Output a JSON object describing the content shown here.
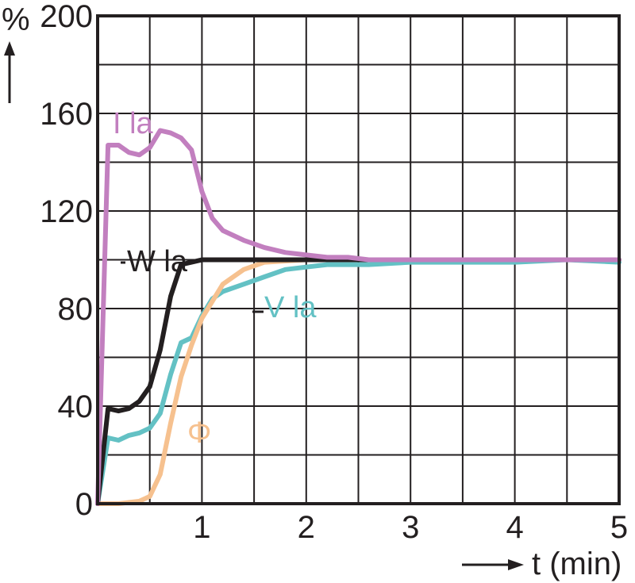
{
  "chart_data": {
    "type": "line",
    "xlabel": "t (min)",
    "ylabel": "%",
    "xlim": [
      0,
      5
    ],
    "ylim": [
      0,
      200
    ],
    "xticks": [
      "1",
      "2",
      "3",
      "4",
      "5"
    ],
    "yticks": [
      "0",
      "40",
      "80",
      "120",
      "160",
      "200"
    ],
    "grid": true,
    "series": [
      {
        "name": "I la",
        "color": "#c27fbf",
        "x": [
          0,
          0.1,
          0.2,
          0.3,
          0.4,
          0.5,
          0.6,
          0.7,
          0.8,
          0.9,
          1.0,
          1.1,
          1.2,
          1.4,
          1.6,
          1.8,
          2.0,
          2.2,
          2.4,
          2.6,
          3.0,
          3.5,
          4.0,
          5.0
        ],
        "y": [
          0,
          147,
          147,
          144,
          143,
          146,
          153,
          152,
          150,
          145,
          128,
          117,
          112,
          108,
          105,
          103,
          102,
          101,
          101,
          100,
          100,
          100,
          100,
          100
        ]
      },
      {
        "name": "W la",
        "color": "#231f20",
        "x": [
          0,
          0.1,
          0.2,
          0.3,
          0.4,
          0.5,
          0.6,
          0.7,
          0.8,
          0.9,
          1.0,
          1.2,
          1.5,
          2.0,
          3.0,
          5.0
        ],
        "y": [
          0,
          39,
          38,
          39,
          42,
          48,
          63,
          85,
          98,
          99,
          100,
          100,
          100,
          100,
          100,
          100
        ]
      },
      {
        "name": "V la",
        "color": "#63c1c4",
        "x": [
          0,
          0.1,
          0.2,
          0.3,
          0.4,
          0.5,
          0.6,
          0.7,
          0.8,
          0.9,
          1.0,
          1.1,
          1.2,
          1.4,
          1.6,
          1.8,
          2.0,
          2.2,
          2.6,
          3.0,
          4.0,
          4.5,
          5.0
        ],
        "y": [
          0,
          27,
          26,
          28,
          29,
          31,
          37,
          53,
          66,
          68,
          77,
          84,
          87,
          90,
          93,
          96,
          97,
          98,
          98,
          99,
          99,
          100,
          99
        ]
      },
      {
        "name": "Φ",
        "color": "#f6c18f",
        "x": [
          0,
          0.2,
          0.4,
          0.5,
          0.6,
          0.7,
          0.8,
          0.9,
          1.0,
          1.2,
          1.4,
          1.6,
          2.0,
          3.0,
          5.0
        ],
        "y": [
          0,
          0,
          1,
          3,
          12,
          33,
          52,
          65,
          76,
          90,
          96,
          99,
          100,
          100,
          100
        ]
      }
    ],
    "annotations": [
      {
        "text": "I la",
        "series": "I la"
      },
      {
        "text": "W la",
        "series": "W la"
      },
      {
        "text": "V la",
        "series": "V la"
      },
      {
        "text": "Φ",
        "series": "Φ"
      }
    ]
  }
}
